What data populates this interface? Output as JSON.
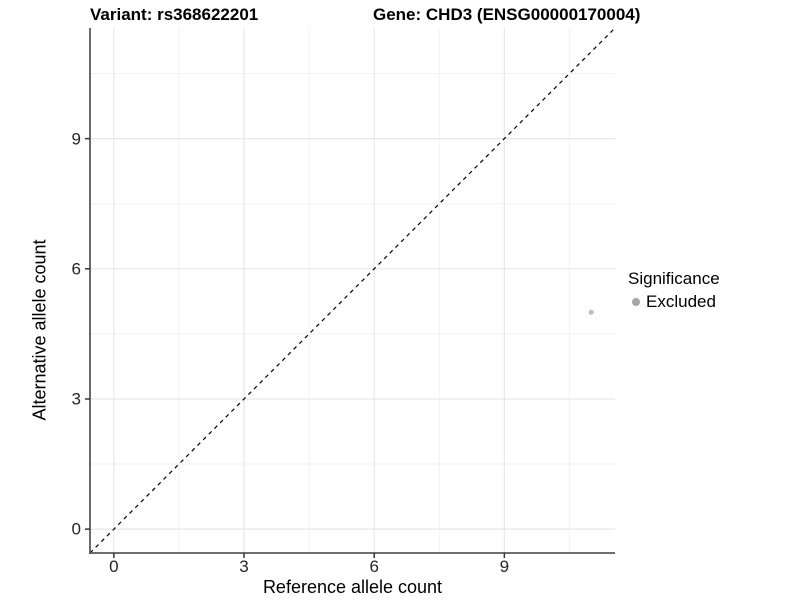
{
  "chart_data": {
    "type": "scatter",
    "title_left": "Variant: rs368622201",
    "title_right": "Gene: CHD3 (ENSG00000170004)",
    "xlabel": "Reference allele count",
    "ylabel": "Alternative allele count",
    "xlim": [
      -0.55,
      11.55
    ],
    "ylim": [
      -0.55,
      11.55
    ],
    "xticks": [
      0,
      3,
      6,
      9
    ],
    "yticks": [
      0,
      3,
      6,
      9
    ],
    "minor_ticks_x": [
      1.5,
      4.5,
      7.5,
      10.5
    ],
    "minor_ticks_y": [
      1.5,
      4.5,
      7.5,
      10.5
    ],
    "grid": true,
    "reference_line": {
      "type": "identity",
      "slope": 1,
      "intercept": 0,
      "style": "dashed",
      "color": "#000000"
    },
    "series": [
      {
        "name": "Excluded",
        "color": "#bfbfbf",
        "points": [
          {
            "x": 11,
            "y": 5
          }
        ]
      }
    ],
    "legend": {
      "title": "Significance",
      "position": "right",
      "items": [
        {
          "label": "Excluded",
          "color": "#a6a6a6"
        }
      ]
    },
    "colors": {
      "grid_major": "#e7e7e7",
      "grid_minor": "#f2f2f2",
      "axis_line": "#5a5a5a",
      "tick_mark": "#333333"
    }
  }
}
